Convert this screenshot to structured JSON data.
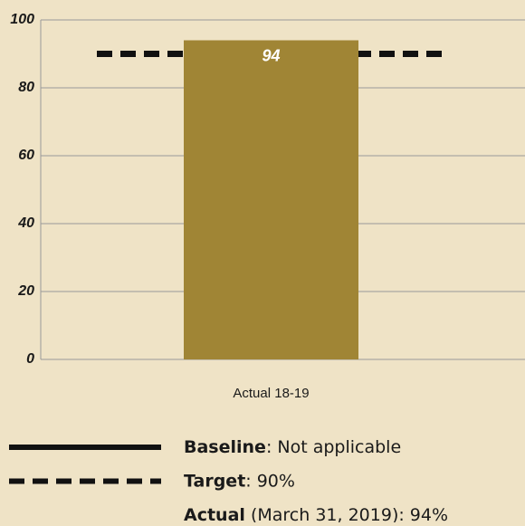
{
  "chart_data": {
    "type": "bar",
    "categories": [
      "Actual 18-19"
    ],
    "values": [
      94
    ],
    "color": "#a08535",
    "ylim": [
      0,
      100
    ],
    "yticks": [
      0,
      20,
      40,
      60,
      80,
      100
    ],
    "grid": true,
    "target": 90,
    "legend": [
      {
        "name": "Baseline",
        "text": ": Not applicable",
        "line_style": "solid"
      },
      {
        "name": "Target",
        "text": ": 90%",
        "line_style": "dashed"
      },
      {
        "name": "Actual",
        "text": " (March 31, 2019): 94%"
      }
    ]
  }
}
